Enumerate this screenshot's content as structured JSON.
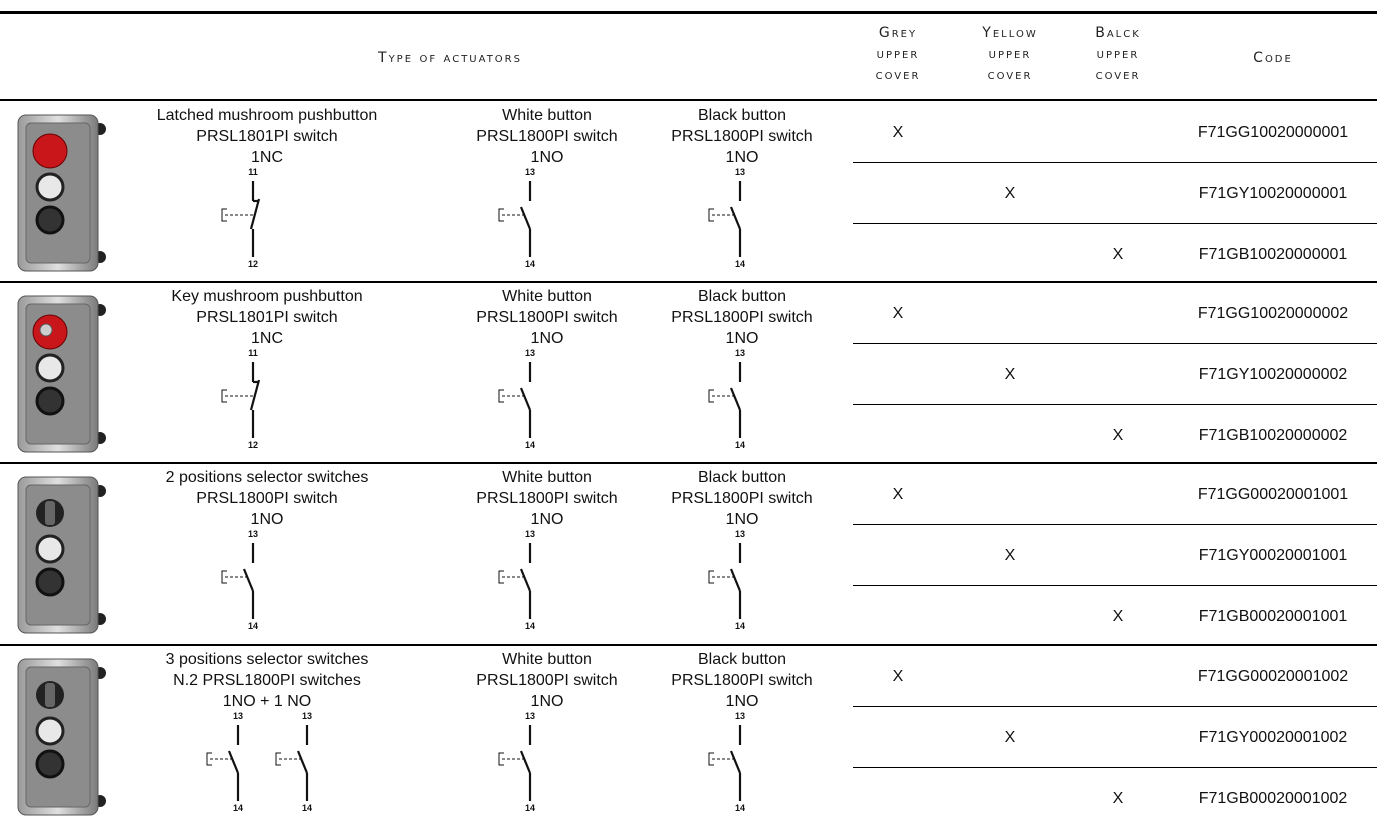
{
  "header": {
    "actuators": "Type of actuators",
    "grey": [
      "Grey",
      "upper",
      "cover"
    ],
    "yellow": [
      "Yellow",
      "upper",
      "cover"
    ],
    "balck": [
      "Balck",
      "upper",
      "cover"
    ],
    "code": "Code"
  },
  "groups": [
    {
      "actuators": [
        {
          "name": "Latched mushroom pushbutton",
          "switch": "PRSL1801PI switch",
          "contact": "1NC",
          "diagrams": [
            [
              "11",
              "12"
            ]
          ]
        },
        {
          "name": "White button",
          "switch": "PRSL1800PI switch",
          "contact": "1NO",
          "diagrams": [
            [
              "13",
              "14"
            ]
          ]
        },
        {
          "name": "Black button",
          "switch": "PRSL1800PI switch",
          "contact": "1NO",
          "diagrams": [
            [
              "13",
              "14"
            ]
          ]
        }
      ],
      "rows": [
        {
          "grey": "X",
          "code": "F71GG10020000001"
        },
        {
          "yellow": "X",
          "code": "F71GY10020000001"
        },
        {
          "balck": "X",
          "code": "F71GB10020000001"
        }
      ]
    },
    {
      "actuators": [
        {
          "name": "Key mushroom pushbutton",
          "switch": "PRSL1801PI switch",
          "contact": "1NC",
          "diagrams": [
            [
              "11",
              "12"
            ]
          ]
        },
        {
          "name": "White button",
          "switch": "PRSL1800PI switch",
          "contact": "1NO",
          "diagrams": [
            [
              "13",
              "14"
            ]
          ]
        },
        {
          "name": "Black button",
          "switch": "PRSL1800PI switch",
          "contact": "1NO",
          "diagrams": [
            [
              "13",
              "14"
            ]
          ]
        }
      ],
      "rows": [
        {
          "grey": "X",
          "code": "F71GG10020000002"
        },
        {
          "yellow": "X",
          "code": "F71GY10020000002"
        },
        {
          "balck": "X",
          "code": "F71GB10020000002"
        }
      ]
    },
    {
      "actuators": [
        {
          "name": "2 positions selector switches",
          "switch": "PRSL1800PI switch",
          "contact": "1NO",
          "diagrams": [
            [
              "13",
              "14"
            ]
          ]
        },
        {
          "name": "White button",
          "switch": "PRSL1800PI switch",
          "contact": "1NO",
          "diagrams": [
            [
              "13",
              "14"
            ]
          ]
        },
        {
          "name": "Black button",
          "switch": "PRSL1800PI switch",
          "contact": "1NO",
          "diagrams": [
            [
              "13",
              "14"
            ]
          ]
        }
      ],
      "rows": [
        {
          "grey": "X",
          "code": "F71GG00020001001"
        },
        {
          "yellow": "X",
          "code": "F71GY00020001001"
        },
        {
          "balck": "X",
          "code": "F71GB00020001001"
        }
      ]
    },
    {
      "actuators": [
        {
          "name": "3 positions selector switches",
          "switch": "N.2 PRSL1800PI switches",
          "contact": "1NO + 1 NO",
          "diagrams": [
            [
              "13",
              "14"
            ],
            [
              "13",
              "14"
            ]
          ]
        },
        {
          "name": "White button",
          "switch": "PRSL1800PI switch",
          "contact": "1NO",
          "diagrams": [
            [
              "13",
              "14"
            ]
          ]
        },
        {
          "name": "Black button",
          "switch": "PRSL1800PI switch",
          "contact": "1NO",
          "diagrams": [
            [
              "13",
              "14"
            ]
          ]
        }
      ],
      "rows": [
        {
          "grey": "X",
          "code": "F71GG00020001002"
        },
        {
          "yellow": "X",
          "code": "F71GY00020001002"
        },
        {
          "balck": "X",
          "code": "F71GB00020001002"
        }
      ]
    }
  ]
}
